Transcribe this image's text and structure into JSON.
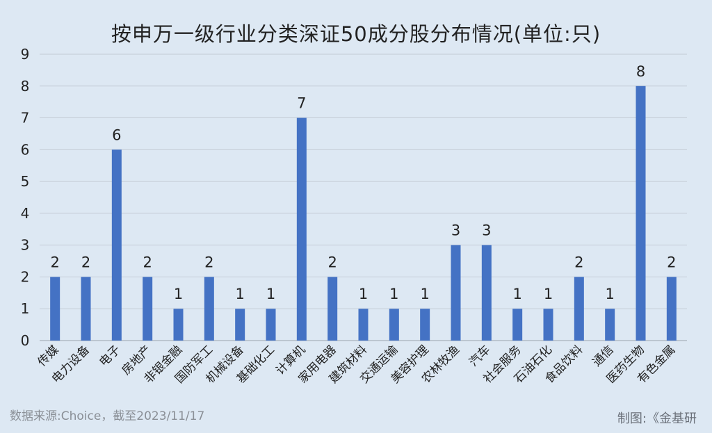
{
  "title": "按申万一级行业分类深证50成分股分布情况(单位:只)",
  "source": "数据来源:Choice，截至2023/11/17",
  "credit": "制图:《金基研",
  "colors": {
    "bar": "#4472c4",
    "grid": "#c4ccd6",
    "axis": "#9aa3ad",
    "text": "#222222"
  },
  "chart_data": {
    "type": "bar",
    "categories": [
      "传媒",
      "电力设备",
      "电子",
      "房地产",
      "非银金融",
      "国防军工",
      "机械设备",
      "基础化工",
      "计算机",
      "家用电器",
      "建筑材料",
      "交通运输",
      "美容护理",
      "农林牧渔",
      "汽车",
      "社会服务",
      "石油石化",
      "食品饮料",
      "通信",
      "医药生物",
      "有色金属"
    ],
    "values": [
      2,
      2,
      6,
      2,
      1,
      2,
      1,
      1,
      7,
      2,
      1,
      1,
      1,
      3,
      3,
      1,
      1,
      2,
      1,
      8,
      2
    ],
    "ylim": [
      0,
      9
    ],
    "yticks": [
      "0",
      "1",
      "2",
      "3",
      "4",
      "5",
      "6",
      "7",
      "8",
      "9"
    ],
    "grid": true,
    "data_labels": true
  }
}
